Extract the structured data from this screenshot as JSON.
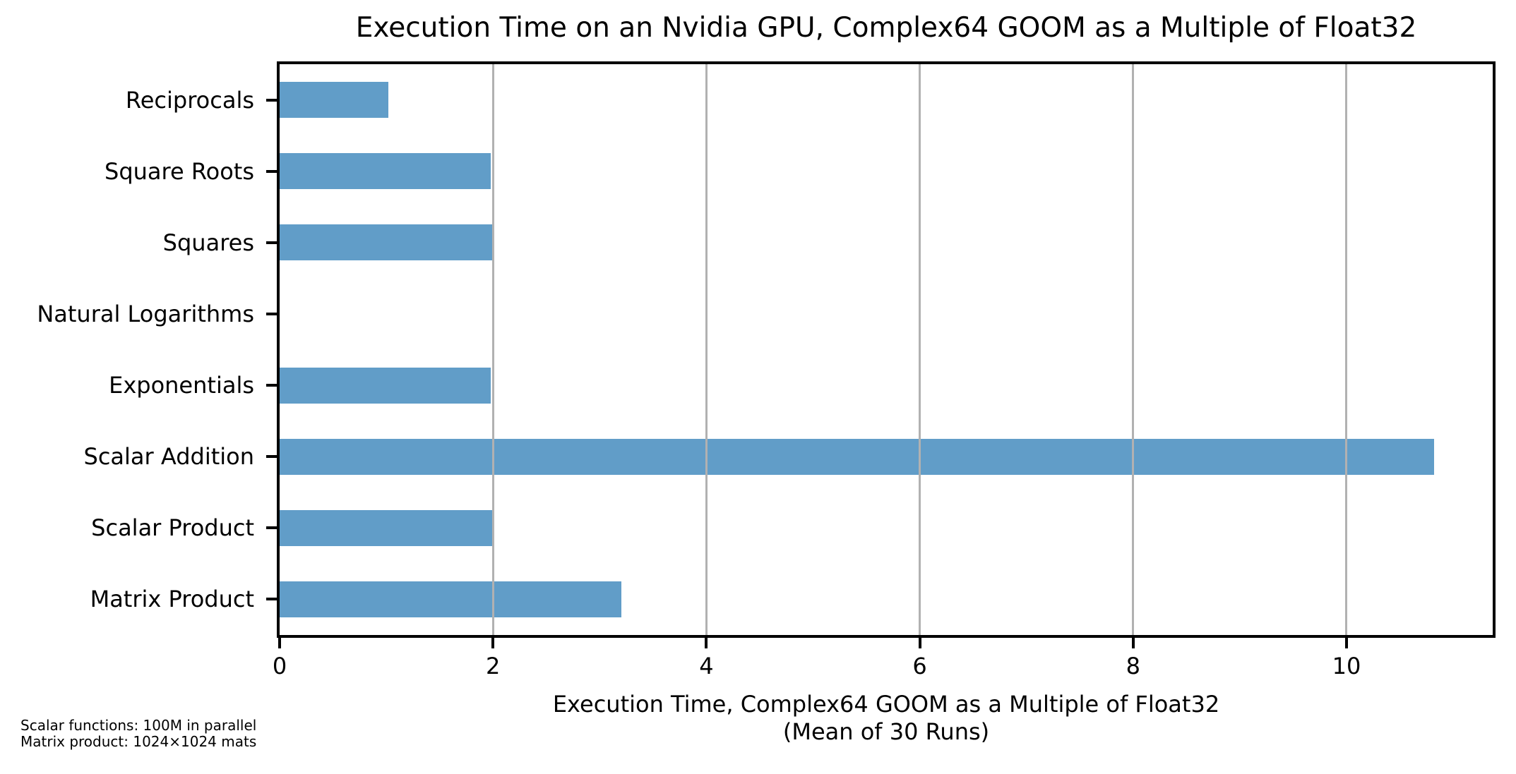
{
  "chart_data": {
    "type": "bar",
    "orientation": "horizontal",
    "title": "Execution Time on an Nvidia GPU, Complex64 GOOM as a Multiple of Float32",
    "categories": [
      "Reciprocals",
      "Square Roots",
      "Squares",
      "Natural Logarithms",
      "Exponentials",
      "Scalar Addition",
      "Scalar Product",
      "Matrix Product"
    ],
    "values": [
      1.02,
      1.98,
      1.99,
      0.0,
      1.98,
      10.82,
      2.0,
      3.2
    ],
    "xlabel_line1": "Execution Time, Complex64 GOOM as a Multiple of Float32",
    "xlabel_line2": "(Mean of 30 Runs)",
    "ylabel": "",
    "xlim": [
      0,
      11.37
    ],
    "xticks": [
      0,
      2,
      4,
      6,
      8,
      10
    ],
    "grid": true,
    "legend": "none",
    "bar_color": "#619dc8",
    "grid_color": "#b1b1b1",
    "spine_color": "#000000"
  },
  "footnote": {
    "line1": "Scalar functions: 100M in parallel",
    "line2": "Matrix product: 1024×1024 mats"
  }
}
